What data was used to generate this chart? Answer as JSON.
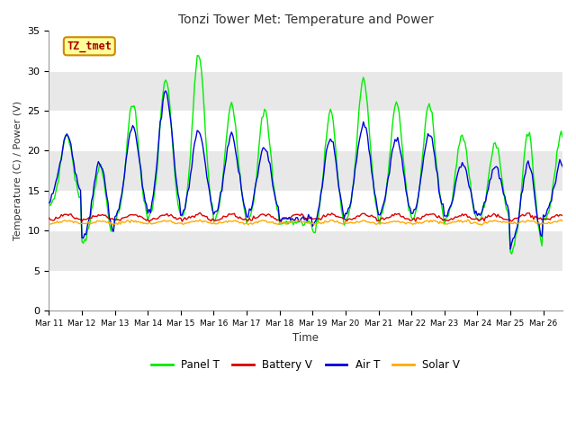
{
  "title": "Tonzi Tower Met: Temperature and Power",
  "xlabel": "Time",
  "ylabel": "Temperature (C) / Power (V)",
  "ylim": [
    0,
    35
  ],
  "yticks": [
    0,
    5,
    10,
    15,
    20,
    25,
    30,
    35
  ],
  "n_hours": 375,
  "xtick_positions": [
    0,
    24,
    48,
    72,
    96,
    120,
    144,
    168,
    192,
    216,
    240,
    264,
    288,
    312,
    336,
    360
  ],
  "xtick_labels": [
    "Mar 11",
    "Mar 12",
    "Mar 13",
    "Mar 14",
    "Mar 15",
    "Mar 16",
    "Mar 17",
    "Mar 18",
    "Mar 19",
    "Mar 20",
    "Mar 21",
    "Mar 22",
    "Mar 23",
    "Mar 24",
    "Mar 25",
    "Mar 26"
  ],
  "fig_bg": "#ffffff",
  "plot_bg": "#f0f0f0",
  "grid_color": "#ffffff",
  "colors": {
    "panel_t": "#00ee00",
    "battery_v": "#dd0000",
    "air_t": "#0000dd",
    "solar_v": "#ffaa00"
  },
  "legend_labels": [
    "Panel T",
    "Battery V",
    "Air T",
    "Solar V"
  ],
  "annotation_text": "TZ_tmet",
  "annotation_fg": "#aa0000",
  "annotation_bg": "#ffff99",
  "annotation_border": "#cc8800",
  "band_colors": [
    "#ffffff",
    "#e8e8e8"
  ],
  "band_yticks": [
    0,
    5,
    10,
    15,
    20,
    25,
    30,
    35
  ]
}
